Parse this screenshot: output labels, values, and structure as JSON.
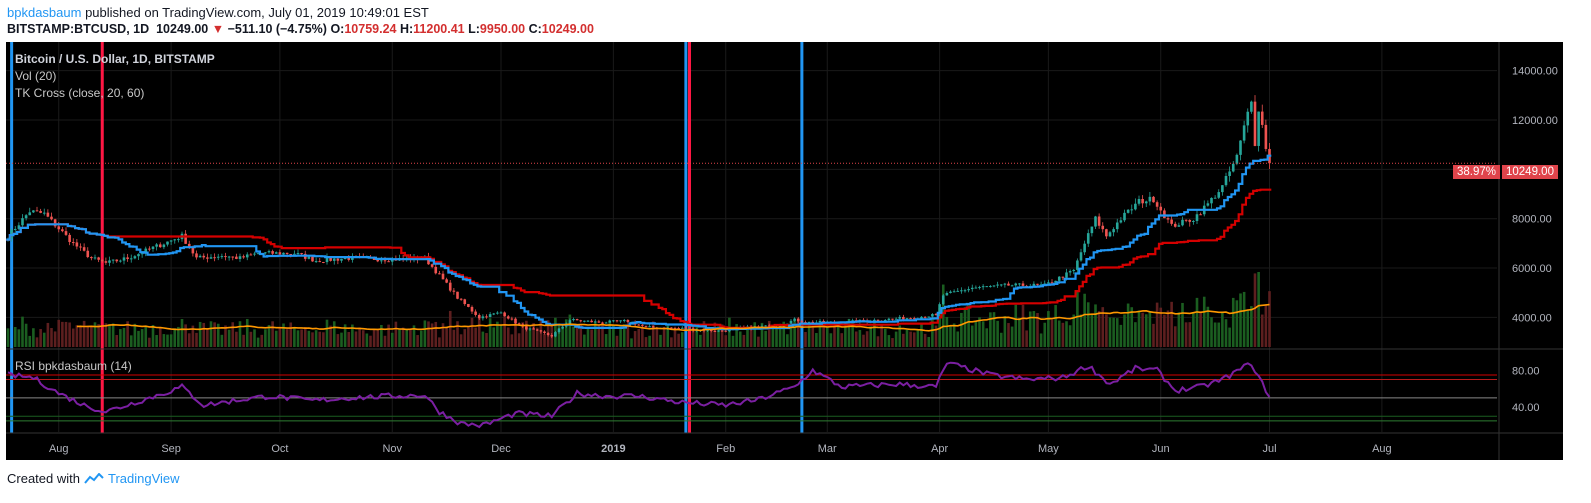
{
  "header": {
    "author": "bpkdasbaum",
    "published": "published on TradingView.com, July 01, 2019 10:49:01 EST",
    "symbol": "BITSTAMP:BTCUSD, 1D",
    "last": "10249.00",
    "change": "−511.10 (−4.75%)",
    "o_label": "O:",
    "o_value": "10759.24",
    "h_label": "H:",
    "h_value": "11200.41",
    "l_label": "L:",
    "l_value": "9950.00",
    "c_label": "C:",
    "c_value": "10249.00"
  },
  "legend": {
    "title": "Bitcoin / U.S. Dollar, 1D, BITSTAMP",
    "vol": "Vol (20)",
    "tk": "TK Cross (close, 20, 60)",
    "rsi": "RSI bpkdasbaum (14)"
  },
  "price_tag": {
    "pct": "38.97%",
    "price": "10249.00"
  },
  "footer": {
    "created": "Created with",
    "brand": "TradingView"
  },
  "colors": {
    "background": "#000000",
    "up": "#26a69a",
    "down": "#ef5350",
    "tenkan": "#2196f3",
    "kijun": "#d50000",
    "vol_ma": "#ff9800",
    "rsi": "#7b1fa2",
    "signal_buy": "#2196f3",
    "signal_sell": "#ff1744"
  },
  "chart_data": [
    {
      "type": "candlestick",
      "title": "Bitcoin / U.S. Dollar, 1D, BITSTAMP",
      "x_ticks": [
        "Aug",
        "Sep",
        "Oct",
        "Nov",
        "Dec",
        "2019",
        "Feb",
        "Mar",
        "Apr",
        "May",
        "Jun",
        "Jul",
        "Aug"
      ],
      "y_ticks": [
        4000,
        6000,
        8000,
        10000,
        12000,
        14000
      ],
      "y_tick_labels": [
        "4000.00",
        "6000.00",
        "8000.00",
        "10000.00",
        "12000.00",
        "14000.00"
      ],
      "ylim": [
        2800,
        15000
      ],
      "price_anchors": [
        [
          "2018-07-18",
          7300
        ],
        [
          "2018-07-24",
          8300
        ],
        [
          "2018-07-28",
          8200
        ],
        [
          "2018-08-01",
          7600
        ],
        [
          "2018-08-05",
          7000
        ],
        [
          "2018-08-10",
          6400
        ],
        [
          "2018-08-14",
          6200
        ],
        [
          "2018-08-20",
          6400
        ],
        [
          "2018-08-25",
          6700
        ],
        [
          "2018-08-30",
          7000
        ],
        [
          "2018-09-04",
          7300
        ],
        [
          "2018-09-08",
          6400
        ],
        [
          "2018-09-15",
          6500
        ],
        [
          "2018-09-20",
          6400
        ],
        [
          "2018-09-25",
          6600
        ],
        [
          "2018-10-05",
          6600
        ],
        [
          "2018-10-11",
          6300
        ],
        [
          "2018-10-20",
          6400
        ],
        [
          "2018-11-01",
          6350
        ],
        [
          "2018-11-10",
          6400
        ],
        [
          "2018-11-14",
          5700
        ],
        [
          "2018-11-19",
          4800
        ],
        [
          "2018-11-25",
          4000
        ],
        [
          "2018-12-01",
          4200
        ],
        [
          "2018-12-07",
          3600
        ],
        [
          "2018-12-15",
          3250
        ],
        [
          "2018-12-20",
          3900
        ],
        [
          "2018-12-28",
          3800
        ],
        [
          "2019-01-05",
          3850
        ],
        [
          "2019-01-10",
          3600
        ],
        [
          "2019-01-20",
          3550
        ],
        [
          "2019-01-30",
          3450
        ],
        [
          "2019-02-08",
          3600
        ],
        [
          "2019-02-15",
          3650
        ],
        [
          "2019-02-20",
          3900
        ],
        [
          "2019-02-24",
          3800
        ],
        [
          "2019-03-05",
          3800
        ],
        [
          "2019-03-15",
          3900
        ],
        [
          "2019-03-25",
          4000
        ],
        [
          "2019-03-31",
          4100
        ],
        [
          "2019-04-02",
          4900
        ],
        [
          "2019-04-10",
          5200
        ],
        [
          "2019-04-20",
          5300
        ],
        [
          "2019-04-30",
          5300
        ],
        [
          "2019-05-08",
          5900
        ],
        [
          "2019-05-11",
          7000
        ],
        [
          "2019-05-14",
          8000
        ],
        [
          "2019-05-17",
          7300
        ],
        [
          "2019-05-21",
          8000
        ],
        [
          "2019-05-26",
          8700
        ],
        [
          "2019-05-30",
          8800
        ],
        [
          "2019-06-04",
          7700
        ],
        [
          "2019-06-10",
          8000
        ],
        [
          "2019-06-14",
          8600
        ],
        [
          "2019-06-18",
          9300
        ],
        [
          "2019-06-22",
          10500
        ],
        [
          "2019-06-26",
          12900
        ],
        [
          "2019-06-27",
          11100
        ],
        [
          "2019-06-28",
          12300
        ],
        [
          "2019-06-29",
          11900
        ],
        [
          "2019-06-30",
          10800
        ],
        [
          "2019-07-01",
          10249
        ]
      ],
      "last_close": 10249.0,
      "tk_cross_buy_dates": [
        "2018-07-19",
        "2019-01-21",
        "2019-02-22"
      ],
      "tk_cross_sell_dates": [
        "2018-08-13",
        "2019-01-22"
      ]
    },
    {
      "type": "line",
      "title": "RSI bpkdasbaum (14)",
      "y_ticks": [
        40,
        80
      ],
      "y_tick_labels": [
        "40.00",
        "80.00"
      ],
      "ylim": [
        15,
        100
      ],
      "levels": [
        70,
        50,
        30
      ],
      "rsi_anchors": [
        [
          "2018-07-18",
          75
        ],
        [
          "2018-07-25",
          72
        ],
        [
          "2018-08-01",
          55
        ],
        [
          "2018-08-08",
          42
        ],
        [
          "2018-08-14",
          35
        ],
        [
          "2018-08-22",
          45
        ],
        [
          "2018-08-30",
          55
        ],
        [
          "2018-09-04",
          62
        ],
        [
          "2018-09-10",
          42
        ],
        [
          "2018-09-20",
          48
        ],
        [
          "2018-09-28",
          52
        ],
        [
          "2018-10-10",
          47
        ],
        [
          "2018-10-20",
          50
        ],
        [
          "2018-11-01",
          52
        ],
        [
          "2018-11-10",
          53
        ],
        [
          "2018-11-14",
          35
        ],
        [
          "2018-11-20",
          22
        ],
        [
          "2018-11-26",
          20
        ],
        [
          "2018-12-05",
          33
        ],
        [
          "2018-12-15",
          30
        ],
        [
          "2018-12-22",
          55
        ],
        [
          "2018-12-30",
          52
        ],
        [
          "2019-01-08",
          52
        ],
        [
          "2019-01-20",
          45
        ],
        [
          "2019-02-01",
          42
        ],
        [
          "2019-02-10",
          48
        ],
        [
          "2019-02-20",
          62
        ],
        [
          "2019-02-25",
          80
        ],
        [
          "2019-03-05",
          62
        ],
        [
          "2019-03-20",
          65
        ],
        [
          "2019-03-31",
          62
        ],
        [
          "2019-04-03",
          88
        ],
        [
          "2019-04-15",
          75
        ],
        [
          "2019-04-25",
          70
        ],
        [
          "2019-05-05",
          72
        ],
        [
          "2019-05-12",
          85
        ],
        [
          "2019-05-18",
          65
        ],
        [
          "2019-05-25",
          82
        ],
        [
          "2019-05-31",
          80
        ],
        [
          "2019-06-05",
          58
        ],
        [
          "2019-06-12",
          62
        ],
        [
          "2019-06-18",
          70
        ],
        [
          "2019-06-26",
          88
        ],
        [
          "2019-06-28",
          72
        ],
        [
          "2019-07-01",
          52
        ]
      ]
    }
  ]
}
